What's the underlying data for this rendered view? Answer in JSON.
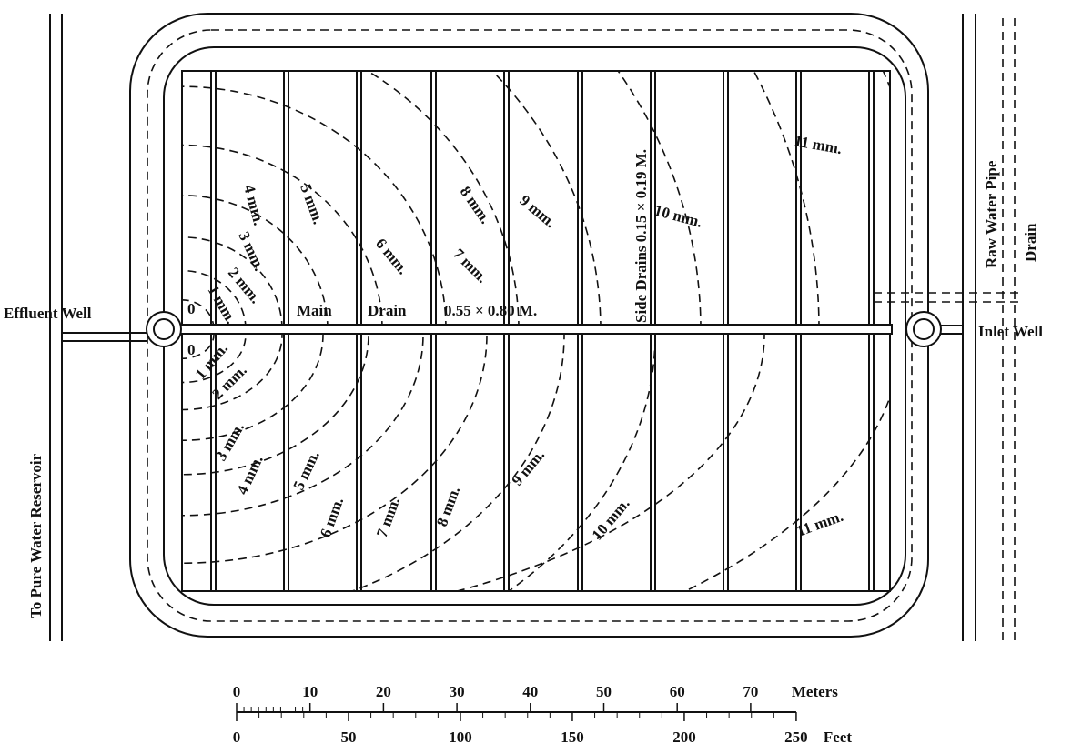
{
  "labels": {
    "effluent_well": "Effluent Well",
    "inlet_well": "Inlet Well",
    "main": "Main",
    "drain_main": "Drain",
    "main_size": "0.55 × 0.80 M.",
    "side_drains": "Side Drains 0.15 × 0.19 M.",
    "raw_water_pipe": "Raw Water Pipe",
    "drain": "Drain",
    "reservoir": "To Pure Water Reservoir"
  },
  "contours_upper": [
    "0",
    "1 mm.",
    "2 mm.",
    "3 mm.",
    "4 mm.",
    "5 mm.",
    "6 mm.",
    "7 mm.",
    "8 mm.",
    "9 mm.",
    "10 mm.",
    "11 mm."
  ],
  "contours_lower": [
    "0",
    "1 mm.",
    "2 mm.",
    "3 mm.",
    "4 mm.",
    "5 mm.",
    "6 mm.",
    "7 mm.",
    "8 mm.",
    "9 mm.",
    "10 mm.",
    "11 mm."
  ],
  "scale": {
    "meters": {
      "unit": "Meters",
      "ticks": [
        0,
        10,
        20,
        30,
        40,
        50,
        60,
        70
      ]
    },
    "feet": {
      "unit": "Feet",
      "ticks": [
        0,
        50,
        100,
        150,
        200,
        250
      ]
    }
  }
}
